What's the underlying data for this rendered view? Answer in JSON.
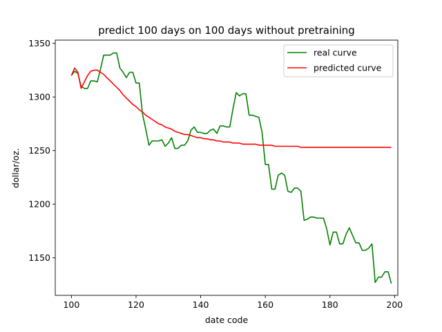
{
  "chart_data": {
    "type": "line",
    "title": "predict 100 days on 100 days without pretraining",
    "xlabel": "date code",
    "ylabel": "dollar/oz.",
    "xlim": [
      95,
      201
    ],
    "ylim": [
      1115,
      1353
    ],
    "xticks": [
      100,
      120,
      140,
      160,
      180,
      200
    ],
    "yticks": [
      1150,
      1200,
      1250,
      1300,
      1350
    ],
    "grid": false,
    "legend_position": "top-right",
    "series": [
      {
        "name": "real curve",
        "color": "#008000",
        "x": [
          100,
          101,
          102,
          103,
          104,
          105,
          106,
          107,
          108,
          109,
          110,
          111,
          112,
          113,
          114,
          115,
          116,
          117,
          118,
          119,
          120,
          121,
          122,
          123,
          124,
          125,
          126,
          127,
          128,
          129,
          130,
          131,
          132,
          133,
          134,
          135,
          136,
          137,
          138,
          139,
          140,
          141,
          142,
          143,
          144,
          145,
          146,
          147,
          148,
          149,
          150,
          151,
          152,
          153,
          154,
          155,
          156,
          157,
          158,
          159,
          160,
          161,
          162,
          163,
          164,
          165,
          166,
          167,
          168,
          169,
          170,
          171,
          172,
          173,
          174,
          175,
          176,
          177,
          178,
          179,
          180,
          181,
          182,
          183,
          184,
          185,
          186,
          187,
          188,
          189,
          190,
          191,
          192,
          193,
          194,
          195,
          196,
          197,
          198,
          199
        ],
        "y": [
          1320,
          1324,
          1322,
          1310,
          1308,
          1308,
          1315,
          1315,
          1314,
          1326,
          1339,
          1339,
          1339,
          1341,
          1341,
          1327,
          1323,
          1318,
          1323,
          1323,
          1313,
          1313,
          1284,
          1270,
          1255,
          1259,
          1259,
          1259,
          1260,
          1254,
          1257,
          1262,
          1252,
          1252,
          1255,
          1255,
          1259,
          1269,
          1272,
          1267,
          1267,
          1266,
          1266,
          1269,
          1270,
          1266,
          1273,
          1273,
          1272,
          1272,
          1289,
          1304,
          1301,
          1303,
          1303,
          1283,
          1283,
          1282,
          1281,
          1267,
          1237,
          1237,
          1214,
          1214,
          1227,
          1229,
          1227,
          1212,
          1211,
          1215,
          1215,
          1212,
          1185,
          1186,
          1188,
          1188,
          1187,
          1187,
          1187,
          1177,
          1162,
          1174,
          1174,
          1163,
          1163,
          1172,
          1178,
          1171,
          1164,
          1164,
          1157,
          1157,
          1159,
          1163,
          1127,
          1132,
          1132,
          1137,
          1137,
          1126
        ]
      },
      {
        "name": "predicted curve",
        "color": "#ff0000",
        "x": [
          100,
          101,
          102,
          103,
          104,
          105,
          106,
          107,
          108,
          109,
          110,
          111,
          112,
          113,
          114,
          115,
          116,
          117,
          118,
          119,
          120,
          121,
          122,
          123,
          124,
          125,
          126,
          127,
          128,
          129,
          130,
          131,
          132,
          133,
          134,
          135,
          136,
          137,
          138,
          139,
          140,
          141,
          142,
          143,
          144,
          145,
          146,
          147,
          148,
          149,
          150,
          151,
          152,
          153,
          154,
          155,
          156,
          157,
          158,
          159,
          160,
          161,
          162,
          163,
          164,
          165,
          166,
          167,
          168,
          169,
          170,
          171,
          172,
          173,
          174,
          175,
          176,
          177,
          178,
          179,
          180,
          181,
          182,
          183,
          184,
          185,
          186,
          187,
          188,
          189,
          190,
          191,
          192,
          193,
          194,
          195,
          196,
          197,
          198,
          199
        ],
        "y": [
          1320,
          1327,
          1323,
          1308,
          1314,
          1320,
          1324,
          1325,
          1325,
          1323,
          1321,
          1318,
          1315,
          1312,
          1309,
          1306,
          1302,
          1299,
          1296,
          1293,
          1291,
          1288,
          1286,
          1283,
          1281,
          1279,
          1277,
          1275,
          1274,
          1272,
          1271,
          1270,
          1268,
          1267,
          1266,
          1265,
          1265,
          1264,
          1263,
          1262,
          1262,
          1261,
          1261,
          1260,
          1260,
          1259,
          1259,
          1258,
          1258,
          1258,
          1257,
          1257,
          1257,
          1256,
          1256,
          1256,
          1256,
          1256,
          1255,
          1255,
          1255,
          1255,
          1255,
          1254,
          1254,
          1254,
          1254,
          1254,
          1254,
          1254,
          1254,
          1253,
          1253,
          1253,
          1253,
          1253,
          1253,
          1253,
          1253,
          1253,
          1253,
          1253,
          1253,
          1253,
          1253,
          1253,
          1253,
          1253,
          1253,
          1253,
          1253,
          1253,
          1253,
          1253,
          1253,
          1253,
          1253,
          1253,
          1253,
          1253
        ]
      }
    ]
  }
}
